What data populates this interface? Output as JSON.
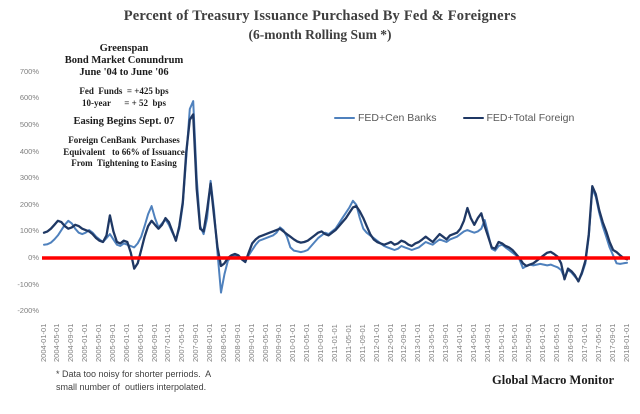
{
  "title": {
    "line1": "Percent of Treasury Issuance Purchased By Fed & Foreigners",
    "line2": "(6-month Rolling Sum *)"
  },
  "annotations": {
    "conundrum_line1": "Greenspan",
    "conundrum_line2": "Bond Market Conundrum",
    "conundrum_line3": "June '04 to June '06",
    "fed_funds": "Fed  Funds  = +425 bps",
    "ten_year": "10-year      = + 52  bps",
    "easing": "Easing Begins Sept. 07",
    "foreign_line1": "Foreign CenBank  Purchases",
    "foreign_line2": "Equivalent   to 66% of Issuance",
    "foreign_line3": "From  Tightening to Easing"
  },
  "legend": [
    {
      "label": "FED+Cen Banks",
      "color": "#4f81bd"
    },
    {
      "label": "FED+Total Foreign",
      "color": "#1f3864"
    }
  ],
  "footnote": {
    "line1": "* Data too noisy for shorter perriods.  A",
    "line2": "small number of  outliers interpolated."
  },
  "branding": "Global Macro Monitor",
  "colors": {
    "zero_line": "#ff0000",
    "cen_banks": "#4f81bd",
    "total_foreign": "#1f3864",
    "axis_text": "#7f7f7f"
  },
  "chart_data": {
    "type": "line",
    "title": "Percent of Treasury Issuance Purchased By Fed & Foreigners (6-month Rolling Sum *)",
    "x_unit": "monthly from 2004-01-01 to 2018-01-01",
    "ylim": [
      -200,
      700
    ],
    "grid": false,
    "legend_position": "top-right",
    "zero_line": 0,
    "y_tick_labels": [
      "700%",
      "600%",
      "500%",
      "400%",
      "300%",
      "200%",
      "100%",
      "0%",
      "-100%",
      "-200%"
    ],
    "y_tick_values": [
      700,
      600,
      500,
      400,
      300,
      200,
      100,
      0,
      -100,
      -200
    ],
    "x_tick_labels": [
      "2004-01-01",
      "2004-05-01",
      "2004-09-01",
      "2005-01-01",
      "2005-05-01",
      "2005-09-01",
      "2006-01-01",
      "2006-05-01",
      "2006-09-01",
      "2007-01-01",
      "2007-05-01",
      "2007-09-01",
      "2008-01-01",
      "2008-05-01",
      "2008-09-01",
      "2009-01-01",
      "2009-05-01",
      "2009-09-01",
      "2010-01-01",
      "2010-05-01",
      "2010-09-01",
      "2011-01-01",
      "2011-05-01",
      "2011-09-01",
      "2012-01-01",
      "2012-05-01",
      "2012-09-01",
      "2013-01-01",
      "2013-05-01",
      "2013-09-01",
      "2014-01-01",
      "2014-05-01",
      "2014-09-01",
      "2015-01-01",
      "2015-05-01",
      "2015-09-01",
      "2016-01-01",
      "2016-05-01",
      "2016-09-01",
      "2017-01-01",
      "2017-05-01",
      "2017-09-01",
      "2018-01-01"
    ],
    "series": [
      {
        "name": "FED+Cen Banks",
        "color": "#4f81bd",
        "values": [
          50,
          52,
          58,
          70,
          85,
          105,
          125,
          140,
          130,
          110,
          95,
          90,
          95,
          105,
          95,
          80,
          70,
          60,
          75,
          90,
          70,
          50,
          45,
          55,
          50,
          45,
          40,
          55,
          80,
          120,
          165,
          195,
          150,
          115,
          130,
          145,
          125,
          95,
          70,
          110,
          200,
          380,
          560,
          590,
          300,
          120,
          90,
          150,
          290,
          180,
          20,
          -130,
          -60,
          -10,
          5,
          10,
          5,
          0,
          -5,
          10,
          30,
          50,
          65,
          70,
          75,
          80,
          85,
          95,
          115,
          105,
          80,
          40,
          28,
          25,
          22,
          25,
          30,
          45,
          60,
          75,
          85,
          95,
          90,
          100,
          110,
          130,
          150,
          170,
          190,
          215,
          200,
          150,
          110,
          95,
          85,
          75,
          65,
          55,
          45,
          40,
          35,
          30,
          35,
          45,
          40,
          35,
          30,
          35,
          40,
          50,
          60,
          55,
          50,
          60,
          70,
          65,
          60,
          70,
          75,
          80,
          90,
          100,
          105,
          100,
          95,
          100,
          110,
          143,
          90,
          35,
          28,
          45,
          50,
          40,
          30,
          20,
          10,
          -5,
          -38,
          -30,
          -25,
          -28,
          -25,
          -22,
          -25,
          -28,
          -25,
          -30,
          -35,
          -45,
          -75,
          -45,
          -55,
          -70,
          -85,
          -60,
          -20,
          80,
          260,
          230,
          170,
          120,
          80,
          40,
          10,
          -20,
          -22,
          -20,
          -18
        ]
      },
      {
        "name": "FED+Total Foreign",
        "color": "#1f3864",
        "values": [
          95,
          100,
          110,
          125,
          140,
          135,
          120,
          110,
          115,
          125,
          120,
          110,
          105,
          100,
          90,
          75,
          65,
          60,
          85,
          160,
          100,
          60,
          55,
          65,
          60,
          20,
          -40,
          -20,
          30,
          80,
          120,
          140,
          125,
          110,
          125,
          150,
          135,
          100,
          65,
          120,
          210,
          400,
          520,
          540,
          260,
          110,
          100,
          180,
          280,
          160,
          40,
          -30,
          -20,
          0,
          10,
          15,
          10,
          -5,
          -15,
          20,
          55,
          70,
          80,
          85,
          90,
          95,
          100,
          105,
          110,
          100,
          90,
          80,
          70,
          62,
          58,
          60,
          65,
          75,
          85,
          95,
          100,
          90,
          85,
          95,
          105,
          120,
          135,
          150,
          170,
          190,
          195,
          175,
          150,
          120,
          90,
          70,
          60,
          55,
          50,
          55,
          60,
          50,
          55,
          65,
          60,
          50,
          45,
          55,
          60,
          70,
          80,
          70,
          60,
          75,
          90,
          80,
          70,
          85,
          90,
          95,
          110,
          140,
          188,
          150,
          125,
          150,
          168,
          120,
          80,
          40,
          35,
          60,
          55,
          45,
          40,
          30,
          15,
          0,
          -20,
          -30,
          -25,
          -20,
          -10,
          0,
          10,
          20,
          23,
          15,
          5,
          -20,
          -80,
          -40,
          -50,
          -65,
          -88,
          -55,
          -10,
          90,
          270,
          240,
          180,
          135,
          100,
          60,
          30,
          22,
          10,
          0,
          -5
        ]
      }
    ]
  }
}
